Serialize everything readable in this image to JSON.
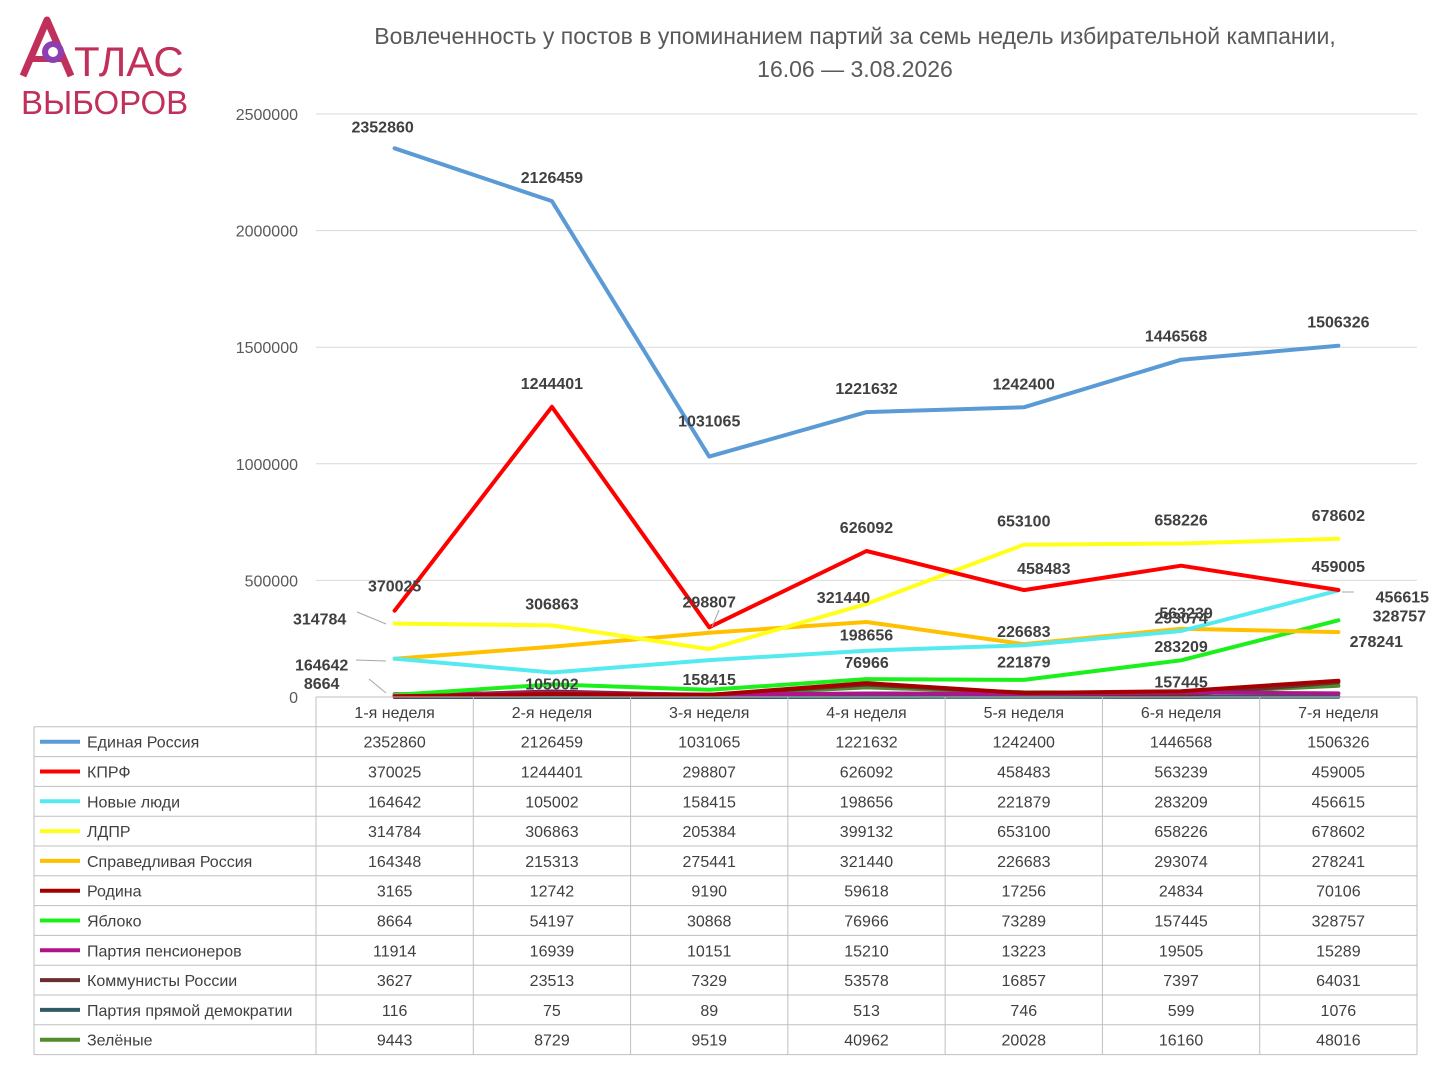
{
  "logo": {
    "line1": "ТЛАС",
    "line2": "ВЫБОРОВ",
    "color": "#c0305a"
  },
  "title": "Вовлеченность у постов в упоминанием партий за семь недель избирательной кампании,",
  "subtitle": "16.06 — 3.08.2026",
  "chart_data": {
    "type": "line",
    "title": "Вовлеченность у постов в упоминанием партий за семь недель избирательной кампании, 16.06 — 3.08.2026",
    "categories": [
      "1-я неделя",
      "2-я неделя",
      "3-я неделя",
      "4-я неделя",
      "5-я неделя",
      "6-я неделя",
      "7-я неделя"
    ],
    "ylim": [
      0,
      2500000
    ],
    "yticks": [
      0,
      500000,
      1000000,
      1500000,
      2000000,
      2500000
    ],
    "grid": true,
    "legend": "data table below chart",
    "series": [
      {
        "name": "Единая Россия",
        "color": "#5b9bd5",
        "values": [
          2352860,
          2126459,
          1031065,
          1221632,
          1242400,
          1446568,
          1506326
        ]
      },
      {
        "name": "КПРФ",
        "color": "#ff0000",
        "values": [
          370025,
          1244401,
          298807,
          626092,
          458483,
          563239,
          459005
        ]
      },
      {
        "name": "Новые люди",
        "color": "#55eaf0",
        "values": [
          164642,
          105002,
          158415,
          198656,
          221879,
          283209,
          456615
        ]
      },
      {
        "name": "ЛДПР",
        "color": "#ffff1a",
        "values": [
          314784,
          306863,
          205384,
          399132,
          653100,
          658226,
          678602
        ]
      },
      {
        "name": "Справедливая Россия",
        "color": "#ffc000",
        "values": [
          164348,
          215313,
          275441,
          321440,
          226683,
          293074,
          278241
        ]
      },
      {
        "name": "Родина",
        "color": "#a50000",
        "values": [
          3165,
          12742,
          9190,
          59618,
          17256,
          24834,
          70106
        ]
      },
      {
        "name": "Яблоко",
        "color": "#1bf01b",
        "values": [
          8664,
          54197,
          30868,
          76966,
          73289,
          157445,
          328757
        ]
      },
      {
        "name": "Партия пенсионеров",
        "color": "#b0148c",
        "values": [
          11914,
          16939,
          10151,
          15210,
          13223,
          19505,
          15289
        ]
      },
      {
        "name": "Коммунисты России",
        "color": "#6b2e2e",
        "values": [
          3627,
          23513,
          7329,
          53578,
          16857,
          7397,
          64031
        ]
      },
      {
        "name": "Партия прямой демократии",
        "color": "#2f5a66",
        "values": [
          116,
          75,
          89,
          513,
          746,
          599,
          1076
        ]
      },
      {
        "name": "Зелёные",
        "color": "#4e8c2e",
        "values": [
          9443,
          8729,
          9519,
          40962,
          20028,
          16160,
          48016
        ]
      }
    ],
    "data_labels": [
      {
        "text": "2352860",
        "series": 0,
        "point": 0
      },
      {
        "text": "2126459",
        "series": 0,
        "point": 1
      },
      {
        "text": "1031065",
        "series": 0,
        "point": 2
      },
      {
        "text": "1221632",
        "series": 0,
        "point": 3
      },
      {
        "text": "1242400",
        "series": 0,
        "point": 4
      },
      {
        "text": "1446568",
        "series": 0,
        "point": 5
      },
      {
        "text": "1506326",
        "series": 0,
        "point": 6
      },
      {
        "text": "370025",
        "series": 1,
        "point": 0
      },
      {
        "text": "1244401",
        "series": 1,
        "point": 1
      },
      {
        "text": "298807",
        "series": 1,
        "point": 2
      },
      {
        "text": "626092",
        "series": 1,
        "point": 3
      },
      {
        "text": "458483",
        "series": 1,
        "point": 4
      },
      {
        "text": "563239",
        "series": 1,
        "point": 5
      },
      {
        "text": "459005",
        "series": 1,
        "point": 6
      },
      {
        "text": "164642",
        "series": 2,
        "point": 0
      },
      {
        "text": "105002",
        "series": 2,
        "point": 1
      },
      {
        "text": "158415",
        "series": 2,
        "point": 2
      },
      {
        "text": "198656",
        "series": 2,
        "point": 3
      },
      {
        "text": "221879",
        "series": 2,
        "point": 4
      },
      {
        "text": "283209",
        "series": 2,
        "point": 5
      },
      {
        "text": "456615",
        "series": 2,
        "point": 6
      },
      {
        "text": "314784",
        "series": 3,
        "point": 0
      },
      {
        "text": "306863",
        "series": 3,
        "point": 1
      },
      {
        "text": "653100",
        "series": 3,
        "point": 4
      },
      {
        "text": "658226",
        "series": 3,
        "point": 5
      },
      {
        "text": "678602",
        "series": 3,
        "point": 6
      },
      {
        "text": "321440",
        "series": 4,
        "point": 3
      },
      {
        "text": "226683",
        "series": 4,
        "point": 4
      },
      {
        "text": "293074",
        "series": 4,
        "point": 5
      },
      {
        "text": "278241",
        "series": 4,
        "point": 6
      },
      {
        "text": "8664",
        "series": 6,
        "point": 0
      },
      {
        "text": "76966",
        "series": 6,
        "point": 3
      },
      {
        "text": "157445",
        "series": 6,
        "point": 5
      },
      {
        "text": "328757",
        "series": 6,
        "point": 6
      }
    ]
  }
}
